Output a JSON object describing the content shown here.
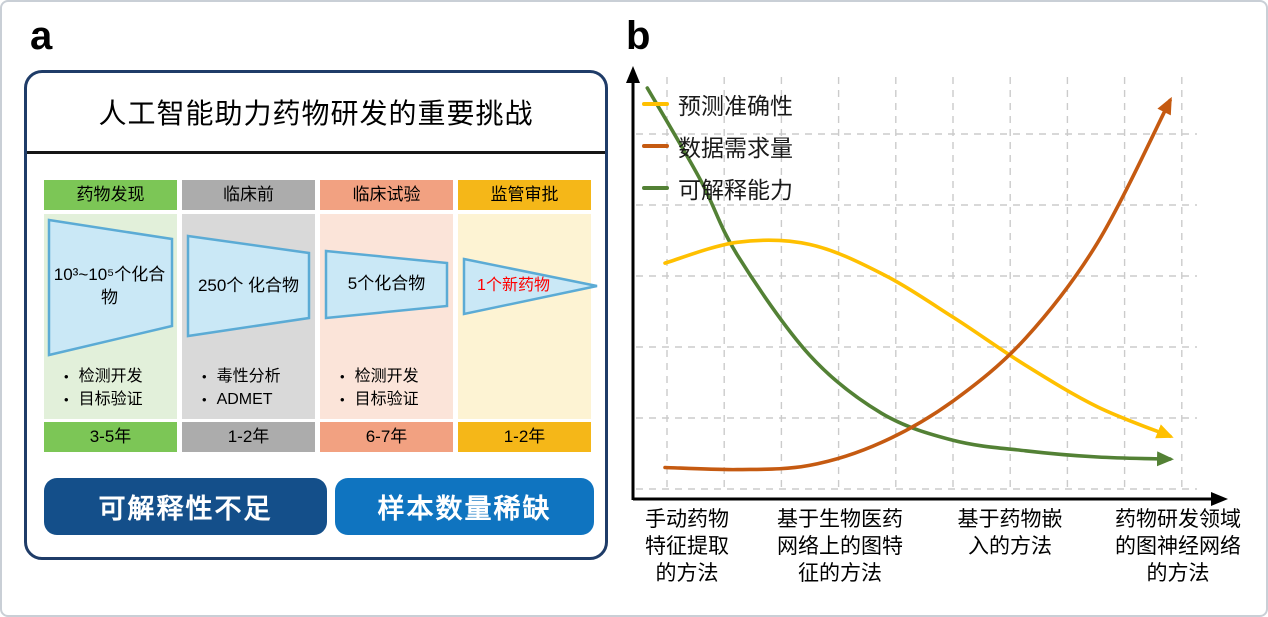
{
  "figure": {
    "panel_a_label": "a",
    "panel_b_label": "b"
  },
  "panel_a": {
    "title": "人工智能助力药物研发的重要挑战",
    "funnel_style": {
      "fill": "#cae8f6",
      "stroke": "#5babd5"
    },
    "stages": [
      {
        "name": "药物发现",
        "funnel_label": "10³~10⁵个化合物",
        "bullets": [
          "检测开发",
          "目标验证"
        ],
        "duration": "3-5年",
        "theme_color": "#7cc656",
        "body_color": "#e2f0da"
      },
      {
        "name": "临床前",
        "funnel_label": "250个 化合物",
        "bullets": [
          "毒性分析",
          "ADMET"
        ],
        "duration": "1-2年",
        "theme_color": "#acacac",
        "body_color": "#d9d9d9"
      },
      {
        "name": "临床试验",
        "funnel_label": "5个化合物",
        "bullets": [
          "检测开发",
          "目标验证"
        ],
        "duration": "6-7年",
        "theme_color": "#f2a181",
        "body_color": "#fbe4d9"
      },
      {
        "name": "监管审批",
        "funnel_label": "1个新药物",
        "funnel_label_color": "#fe0000",
        "bullets": [],
        "duration": "1-2年",
        "theme_color": "#f5b718",
        "body_color": "#fdf3d3"
      }
    ],
    "challenges": [
      {
        "label": "可解释性不足",
        "color": "#144f8a"
      },
      {
        "label": "样本数量稀缺",
        "color": "#0f74c0"
      }
    ]
  },
  "chart_data": {
    "type": "line",
    "x_categories": [
      "手动药物特征提取的方法",
      "基于生物医药网络上的图特征的方法",
      "基于药物嵌入的方法",
      "药物研发领域的图神经网络的方法"
    ],
    "value_scale": "qualitative (no numeric ticks); values normalized 0-1",
    "ylim": [
      0,
      1
    ],
    "grid": "dashed",
    "legend_position": "top-left",
    "axes_end_in_arrows": true,
    "series": [
      {
        "name": "预测准确性",
        "color": "#FFC000",
        "x": [
          0,
          0.143,
          0.286,
          0.429,
          0.571,
          0.714,
          0.857,
          1
        ],
        "values": [
          0.58,
          0.63,
          0.625,
          0.555,
          0.45,
          0.335,
          0.235,
          0.165
        ],
        "trend": "rises to an early peak, then steadily declines"
      },
      {
        "name": "数据需求量",
        "color": "#C55A11",
        "x": [
          0,
          0.143,
          0.286,
          0.429,
          0.571,
          0.714,
          0.857,
          1
        ],
        "values": [
          0.09,
          0.085,
          0.095,
          0.15,
          0.25,
          0.4,
          0.63,
          0.97
        ],
        "trend": "flat at low level, then rises steeply toward the right"
      },
      {
        "name": "可解释能力",
        "color": "#538135",
        "x": [
          -0.035,
          0.07,
          0.143,
          0.286,
          0.429,
          0.571,
          0.714,
          0.857,
          1
        ],
        "values": [
          1.0,
          0.78,
          0.6,
          0.36,
          0.22,
          0.155,
          0.13,
          0.115,
          0.11
        ],
        "trend": "declines steeply, then flattens at low level"
      }
    ]
  }
}
